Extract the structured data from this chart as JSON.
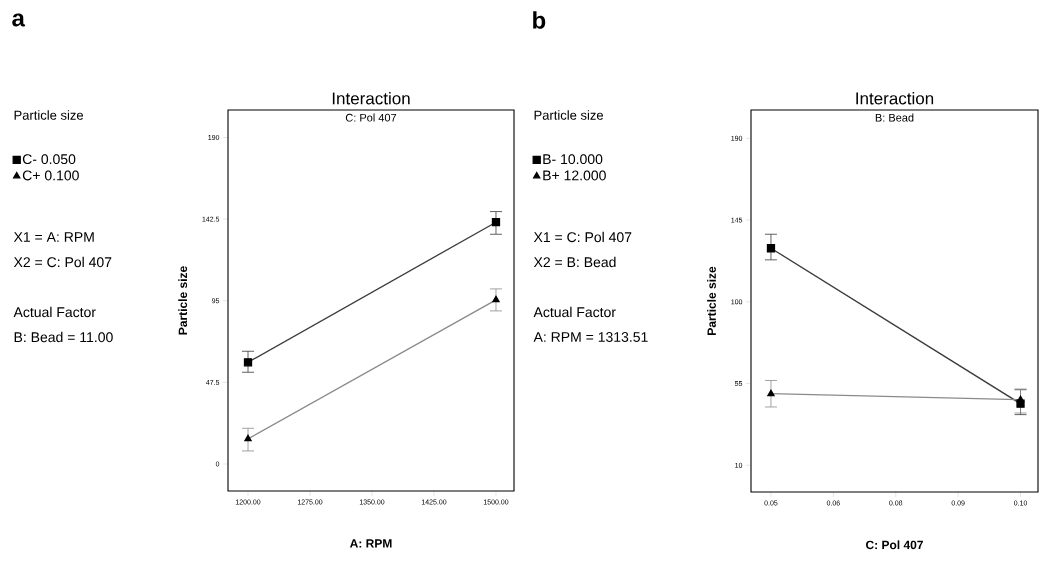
{
  "chart_data": [
    {
      "type": "line",
      "title": "Interaction",
      "subtitle": "C: Pol 407",
      "xlabel": "A: RPM",
      "ylabel": "Particle size",
      "legend_title": "Particle size",
      "annotations": [
        "a",
        "X1 = A: RPM",
        "X2 = C: Pol 407",
        "Actual Factor",
        "B: Bead = 11.00"
      ],
      "x": [
        1200,
        1500
      ],
      "series": [
        {
          "name": "C- 0.050",
          "color": "#3a3a3a",
          "marker": "square",
          "values": [
            59.2,
            140.7
          ],
          "errors": [
            [
              53.4,
              65.6
            ],
            [
              133.7,
              146.9
            ]
          ]
        },
        {
          "name": "C+ 0.100",
          "color": "#8a8a8a",
          "marker": "triangle",
          "values": [
            14.6,
            95.5
          ],
          "errors": [
            [
              7.6,
              20.8
            ],
            [
              89.1,
              101.9
            ]
          ]
        }
      ],
      "xlim": [
        1175.8,
        1521.8
      ],
      "ylim": [
        -15.7,
        206
      ],
      "xticks": [
        {
          "value": 1200,
          "label": "1200.00"
        },
        {
          "value": 1275,
          "label": "1275.00"
        },
        {
          "value": 1350,
          "label": "1350.00"
        },
        {
          "value": 1425,
          "label": "1425.00"
        },
        {
          "value": 1500,
          "label": "1500.00"
        }
      ],
      "yticks": [
        0,
        47.5,
        95,
        142.5,
        190
      ],
      "legend": "left"
    },
    {
      "type": "line",
      "title": "Interaction",
      "subtitle": "B: Bead",
      "xlabel": "C: Pol 407",
      "ylabel": "Particle size",
      "legend_title": "Particle size",
      "annotations": [
        "b",
        "X1 = C: Pol 407",
        "X2 = B: Bead",
        "Actual Factor",
        "A: RPM = 1313.51"
      ],
      "x": [
        0.05,
        0.1
      ],
      "series": [
        {
          "name": "B- 10.000",
          "color": "#3a3a3a",
          "marker": "square",
          "values": [
            129.5,
            43.9
          ],
          "errors": [
            [
              123.1,
              137.2
            ],
            [
              37.9,
              51.6
            ]
          ]
        },
        {
          "name": "B+ 12.000",
          "color": "#8a8a8a",
          "marker": "triangle",
          "values": [
            49.4,
            46.1
          ],
          "errors": [
            [
              42.1,
              56.7
            ],
            [
              38.8,
              52
            ]
          ]
        }
      ],
      "xlim": [
        0.046,
        0.1035
      ],
      "ylim": [
        -4.7,
        205.6
      ],
      "xticks": [
        0.05,
        {
          "value": 0.0625,
          "label": "0.06"
        },
        {
          "value": 0.075,
          "label": "0.08"
        },
        {
          "value": 0.0875,
          "label": "0.09"
        },
        {
          "value": 0.1,
          "label": "0.10"
        }
      ],
      "yticks": [
        10,
        55,
        100,
        145,
        190
      ],
      "legend": "left"
    }
  ]
}
